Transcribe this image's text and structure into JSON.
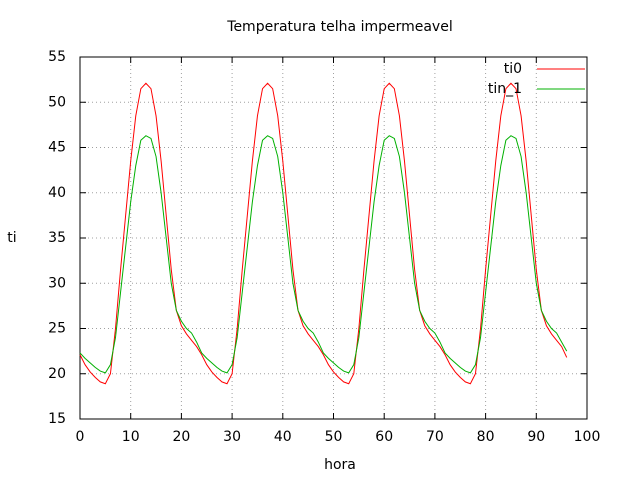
{
  "chart_data": {
    "type": "line",
    "title": "Temperatura telha impermeavel",
    "xlabel": "hora",
    "ylabel": "ti",
    "x": [
      0,
      1,
      2,
      3,
      4,
      5,
      6,
      7,
      8,
      9,
      10,
      11,
      12,
      13,
      14,
      15,
      16,
      17,
      18,
      19,
      20,
      21,
      22,
      23,
      24,
      25,
      26,
      27,
      28,
      29,
      30,
      31,
      32,
      33,
      34,
      35,
      36,
      37,
      38,
      39,
      40,
      41,
      42,
      43,
      44,
      45,
      46,
      47,
      48,
      49,
      50,
      51,
      52,
      53,
      54,
      55,
      56,
      57,
      58,
      59,
      60,
      61,
      62,
      63,
      64,
      65,
      66,
      67,
      68,
      69,
      70,
      71,
      72,
      73,
      74,
      75,
      76,
      77,
      78,
      79,
      80,
      81,
      82,
      83,
      84,
      85,
      86,
      87,
      88,
      89,
      90,
      91,
      92,
      93,
      94,
      95,
      96
    ],
    "series": [
      {
        "name": "ti0",
        "color": "#ff0000",
        "values": [
          22.1,
          21.0,
          20.2,
          19.6,
          19.1,
          18.9,
          20.0,
          25.0,
          31.5,
          37.5,
          43.5,
          48.5,
          51.5,
          52.1,
          51.5,
          48.5,
          43.5,
          37.5,
          31.5,
          27.0,
          25.3,
          24.4,
          23.7,
          23.0,
          22.1,
          21.0,
          20.2,
          19.6,
          19.1,
          18.9,
          20.0,
          25.0,
          31.5,
          37.5,
          43.5,
          48.5,
          51.5,
          52.1,
          51.5,
          48.5,
          43.5,
          37.5,
          31.5,
          27.0,
          25.3,
          24.4,
          23.7,
          23.0,
          22.1,
          21.0,
          20.2,
          19.6,
          19.1,
          18.9,
          20.0,
          25.0,
          31.5,
          37.5,
          43.5,
          48.5,
          51.5,
          52.1,
          51.5,
          48.5,
          43.5,
          37.5,
          31.5,
          27.0,
          25.3,
          24.4,
          23.7,
          23.0,
          22.1,
          21.0,
          20.2,
          19.6,
          19.1,
          18.9,
          20.0,
          25.0,
          31.5,
          37.5,
          43.5,
          48.5,
          51.5,
          52.1,
          51.5,
          48.5,
          43.5,
          37.5,
          31.5,
          27.0,
          25.3,
          24.4,
          23.7,
          23.0,
          21.8
        ]
      },
      {
        "name": "tin_1",
        "color": "#00b000",
        "values": [
          22.3,
          21.7,
          21.2,
          20.7,
          20.3,
          20.1,
          21.0,
          24.0,
          29.0,
          34.0,
          39.0,
          43.0,
          45.8,
          46.3,
          46.0,
          44.0,
          40.0,
          35.0,
          30.0,
          27.0,
          25.8,
          25.0,
          24.5,
          23.5,
          22.3,
          21.7,
          21.2,
          20.7,
          20.3,
          20.1,
          21.0,
          24.0,
          29.0,
          34.0,
          39.0,
          43.0,
          45.8,
          46.3,
          46.0,
          44.0,
          40.0,
          35.0,
          30.0,
          27.0,
          25.8,
          25.0,
          24.5,
          23.5,
          22.3,
          21.7,
          21.2,
          20.7,
          20.3,
          20.1,
          21.0,
          24.0,
          29.0,
          34.0,
          39.0,
          43.0,
          45.8,
          46.3,
          46.0,
          44.0,
          40.0,
          35.0,
          30.0,
          27.0,
          25.8,
          25.0,
          24.5,
          23.5,
          22.3,
          21.7,
          21.2,
          20.7,
          20.3,
          20.1,
          21.0,
          24.0,
          29.0,
          34.0,
          39.0,
          43.0,
          45.8,
          46.3,
          46.0,
          44.0,
          40.0,
          35.0,
          30.0,
          27.0,
          25.8,
          25.0,
          24.5,
          23.5,
          22.5
        ]
      }
    ],
    "xlim": [
      0,
      100
    ],
    "xticks": [
      0,
      10,
      20,
      30,
      40,
      50,
      60,
      70,
      80,
      90,
      100
    ],
    "ylim": [
      15,
      55
    ],
    "yticks": [
      15,
      20,
      25,
      30,
      35,
      40,
      45,
      50,
      55
    ],
    "grid": true,
    "legend": "top-right"
  }
}
